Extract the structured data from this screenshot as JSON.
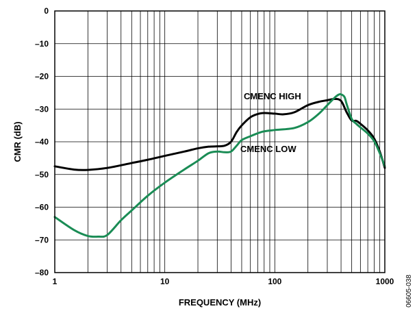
{
  "chart_data": {
    "type": "line",
    "title": "",
    "xlabel": "FREQUENCY (MHz)",
    "ylabel": "CMR (dB)",
    "x_scale": "log",
    "xlim": [
      1,
      1000
    ],
    "ylim": [
      -80,
      0
    ],
    "grid": true,
    "x_tick_labels": [
      "1",
      "10",
      "100",
      "1000"
    ],
    "x_ticks": [
      1,
      10,
      100,
      1000
    ],
    "y_ticks": [
      0,
      -10,
      -20,
      -30,
      -40,
      -50,
      -60,
      -70,
      -80
    ],
    "y_tick_labels": [
      "0",
      "–10",
      "–20",
      "–30",
      "–40",
      "–50",
      "–60",
      "–70",
      "–80"
    ],
    "series": [
      {
        "name": "CMENC HIGH",
        "color": "#000000",
        "x": [
          1,
          1.5,
          2,
          3,
          5,
          7,
          10,
          15,
          20,
          25,
          30,
          35,
          40,
          45,
          50,
          60,
          70,
          80,
          100,
          120,
          150,
          200,
          250,
          300,
          350,
          400,
          450,
          500,
          550,
          600,
          700,
          800,
          900,
          1000
        ],
        "y": [
          -47.5,
          -48.5,
          -48.6,
          -48,
          -46.5,
          -45.5,
          -44.3,
          -43,
          -42,
          -41.5,
          -41.4,
          -41.2,
          -40,
          -37,
          -35,
          -32.5,
          -31.5,
          -31.2,
          -31.4,
          -31.6,
          -31,
          -28.8,
          -27.8,
          -27.3,
          -26.9,
          -27.5,
          -31,
          -33.5,
          -33.6,
          -34.5,
          -36.5,
          -39,
          -43,
          -48
        ]
      },
      {
        "name": "CMENC LOW",
        "color": "#1a8c55",
        "x": [
          1,
          1.5,
          2,
          2.5,
          3,
          4,
          5,
          7,
          10,
          15,
          20,
          25,
          30,
          35,
          40,
          45,
          50,
          60,
          70,
          80,
          100,
          150,
          200,
          250,
          300,
          350,
          380,
          400,
          430,
          450,
          500,
          550,
          600,
          700,
          800,
          900,
          1000
        ],
        "y": [
          -63,
          -67,
          -68.8,
          -69,
          -68.5,
          -64,
          -61,
          -56.5,
          -52.5,
          -48.5,
          -45.8,
          -43.5,
          -43,
          -43.2,
          -43,
          -41.2,
          -39.5,
          -38.3,
          -37.4,
          -36.8,
          -36.4,
          -35.8,
          -34,
          -31.5,
          -28.8,
          -26.5,
          -25.6,
          -25.5,
          -26.3,
          -28.5,
          -33,
          -34.5,
          -35.6,
          -37.5,
          -39.8,
          -43.5,
          -47.5
        ]
      }
    ],
    "annotations": [
      "CMENC HIGH",
      "CMENC LOW"
    ],
    "figure_id": "06605-038"
  }
}
